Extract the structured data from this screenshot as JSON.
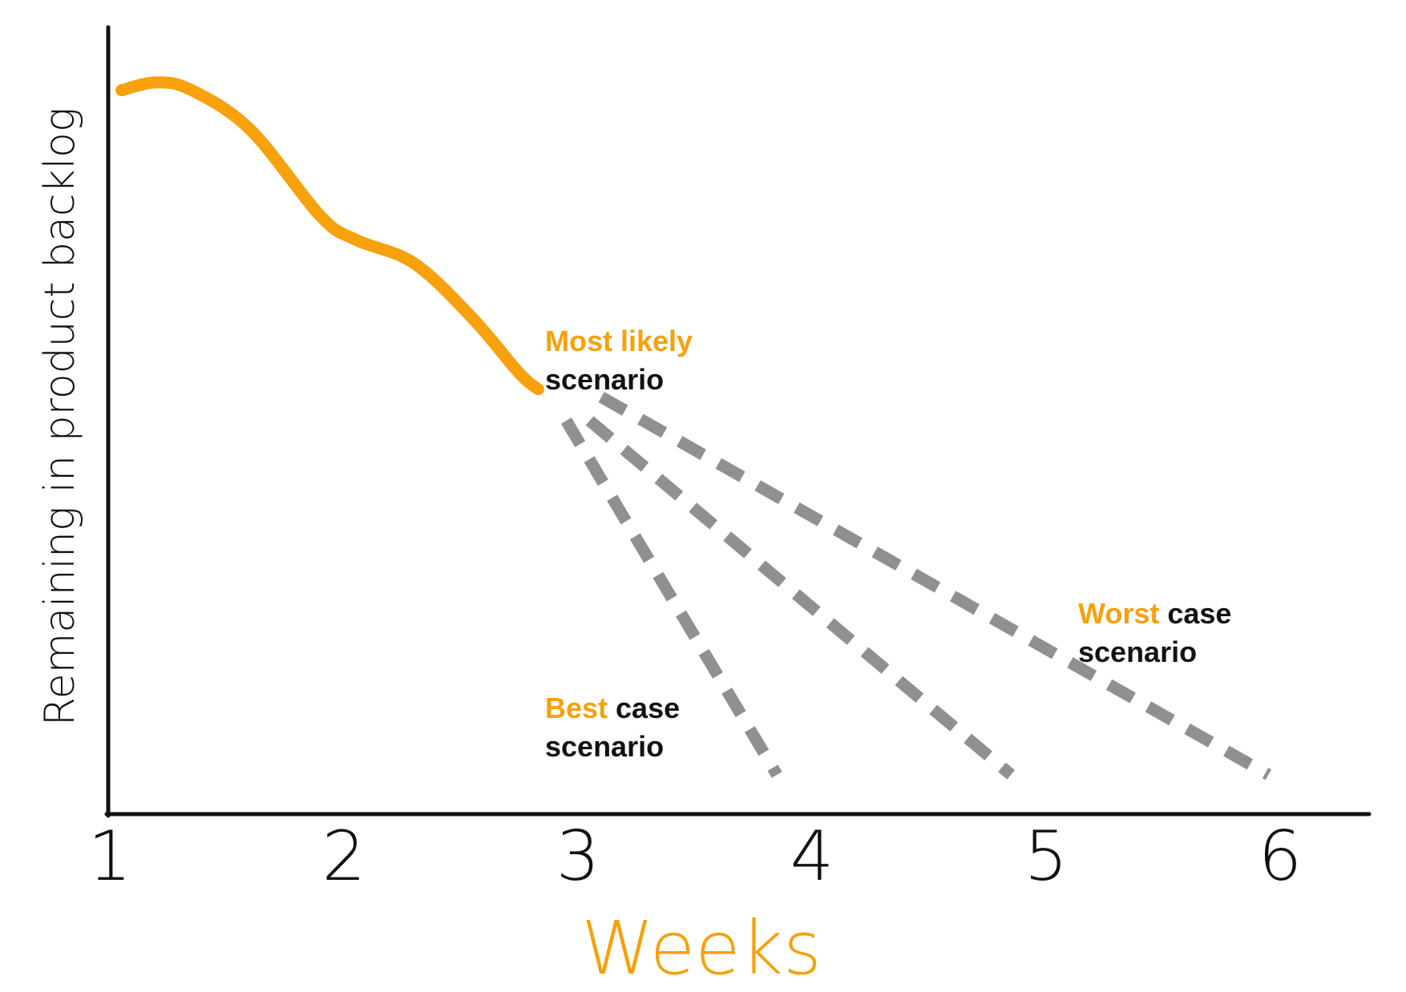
{
  "chart_data": {
    "type": "line",
    "xlabel": "Weeks",
    "ylabel": "Remaining in product backlog",
    "x_ticks": [
      "1",
      "2",
      "3",
      "4",
      "5",
      "6"
    ],
    "xlim": [
      1,
      6.5
    ],
    "ylim": [
      0,
      100
    ],
    "grid": false,
    "series": [
      {
        "role": "actual",
        "style": "solid",
        "color": "#f7a10c",
        "x": [
          1.05,
          1.2,
          1.35,
          1.6,
          1.9,
          2.05,
          2.3,
          2.55,
          2.75,
          2.83
        ],
        "y": [
          92,
          93,
          92,
          87,
          76,
          73,
          70,
          63,
          56,
          54
        ]
      },
      {
        "role": "best",
        "style": "dashed",
        "color": "#909090",
        "x": [
          2.95,
          3.85
        ],
        "y": [
          50,
          5
        ]
      },
      {
        "role": "most-likely",
        "style": "dashed",
        "color": "#909090",
        "x": [
          3.05,
          4.85
        ],
        "y": [
          50,
          5
        ]
      },
      {
        "role": "worst",
        "style": "dashed",
        "color": "#909090",
        "x": [
          3.1,
          5.95
        ],
        "y": [
          53,
          5
        ]
      }
    ],
    "annotations": {
      "most_likely": {
        "highlight": "Most likely",
        "rest_line1": "",
        "line2": "scenario"
      },
      "worst": {
        "highlight": "Worst",
        "rest_line1": " case",
        "line2": "scenario"
      },
      "best": {
        "highlight": "Best",
        "rest_line1": " case",
        "line2": "scenario"
      }
    },
    "colors": {
      "axis": "#111111",
      "highlight": "#f5a10c",
      "actual": "#f7a10c",
      "projection": "#909090",
      "text": "#111111"
    }
  }
}
